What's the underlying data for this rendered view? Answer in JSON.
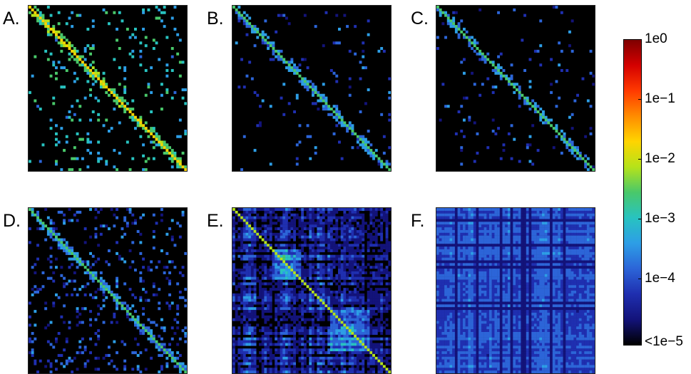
{
  "chart_data": [
    {
      "type": "heatmap",
      "panel": "A.",
      "pattern": "sparse-diagonal",
      "dominant_value": "1e-2",
      "background_value": "<1e-5"
    },
    {
      "type": "heatmap",
      "panel": "B.",
      "pattern": "thin-diagonal",
      "dominant_value": "1e-3",
      "background_value": "<1e-5"
    },
    {
      "type": "heatmap",
      "panel": "C.",
      "pattern": "thin-diagonal",
      "dominant_value": "1e-3",
      "background_value": "<1e-5"
    },
    {
      "type": "heatmap",
      "panel": "D.",
      "pattern": "banded-diagonal",
      "dominant_value": "1e-3",
      "background_value": "<1e-5"
    },
    {
      "type": "heatmap",
      "panel": "E.",
      "pattern": "dense-block",
      "dominant_value": "1e-4",
      "background_value": "1e-5"
    },
    {
      "type": "heatmap",
      "panel": "F.",
      "pattern": "uniform-stripes",
      "dominant_value": "1e-4",
      "background_value": "1e-4"
    }
  ],
  "colorbar": {
    "scale": "log",
    "range": [
      1e-05,
      1
    ],
    "ticks": [
      "1e0",
      "1e−1",
      "1e−2",
      "1e−3",
      "1e−4",
      "<1e−5"
    ],
    "colormap": [
      "#7f0000",
      "#d40000",
      "#ff3a00",
      "#ff8c00",
      "#ffd400",
      "#b5e31a",
      "#49c86a",
      "#28c3c0",
      "#2d9ee6",
      "#2c65d8",
      "#1f2fb0",
      "#13137a",
      "#000000"
    ]
  }
}
